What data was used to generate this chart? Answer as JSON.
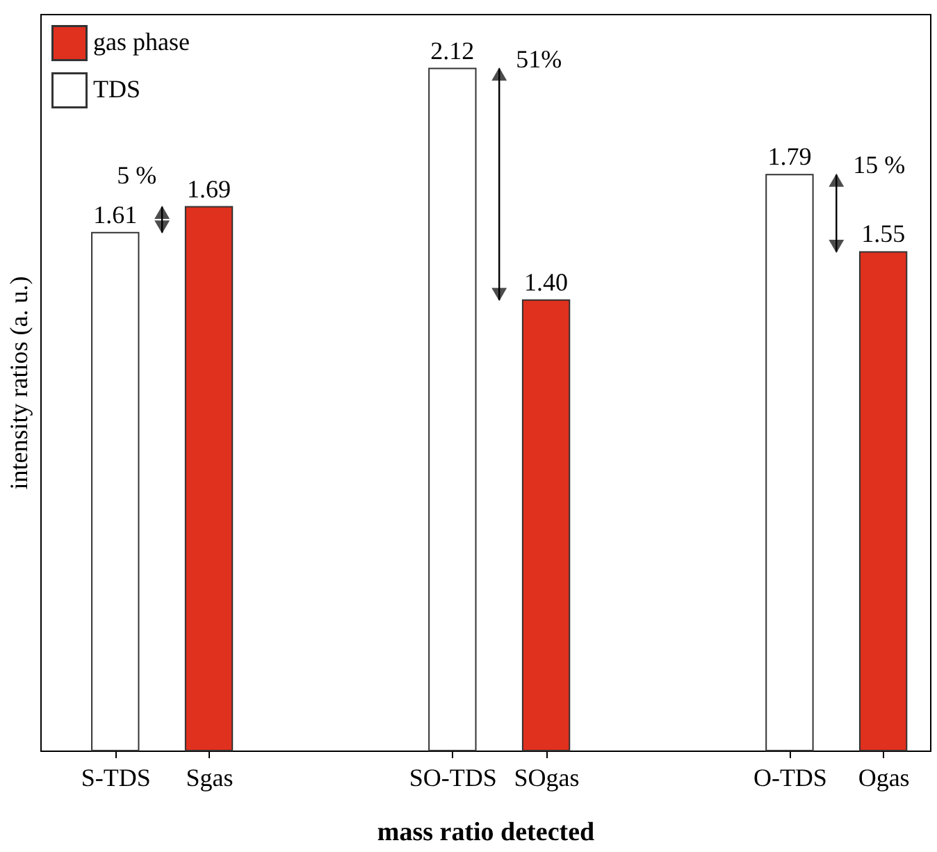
{
  "chart_data": {
    "type": "bar",
    "xlabel": "mass ratio detected",
    "ylabel": "intensity ratios (a. u.)",
    "categories": [
      "S-TDS",
      "Sgas",
      "SO-TDS",
      "SOgas",
      "O-TDS",
      "Ogas"
    ],
    "series": [
      {
        "name": "gas phase",
        "color": "#e0301e",
        "values": [
          null,
          1.69,
          null,
          1.4,
          null,
          1.55
        ],
        "value_labels": [
          null,
          "1.69",
          null,
          "1.40",
          null,
          "1.55"
        ]
      },
      {
        "name": "TDS",
        "color": "#ffffff",
        "values": [
          1.61,
          null,
          2.12,
          null,
          1.79,
          null
        ],
        "value_labels": [
          "1.61",
          null,
          "2.12",
          null,
          "1.79",
          null
        ]
      }
    ],
    "annotations": [
      "5 %",
      "51%",
      "15 %"
    ],
    "legend": "top left",
    "grid": false,
    "tick_labels": "x"
  }
}
